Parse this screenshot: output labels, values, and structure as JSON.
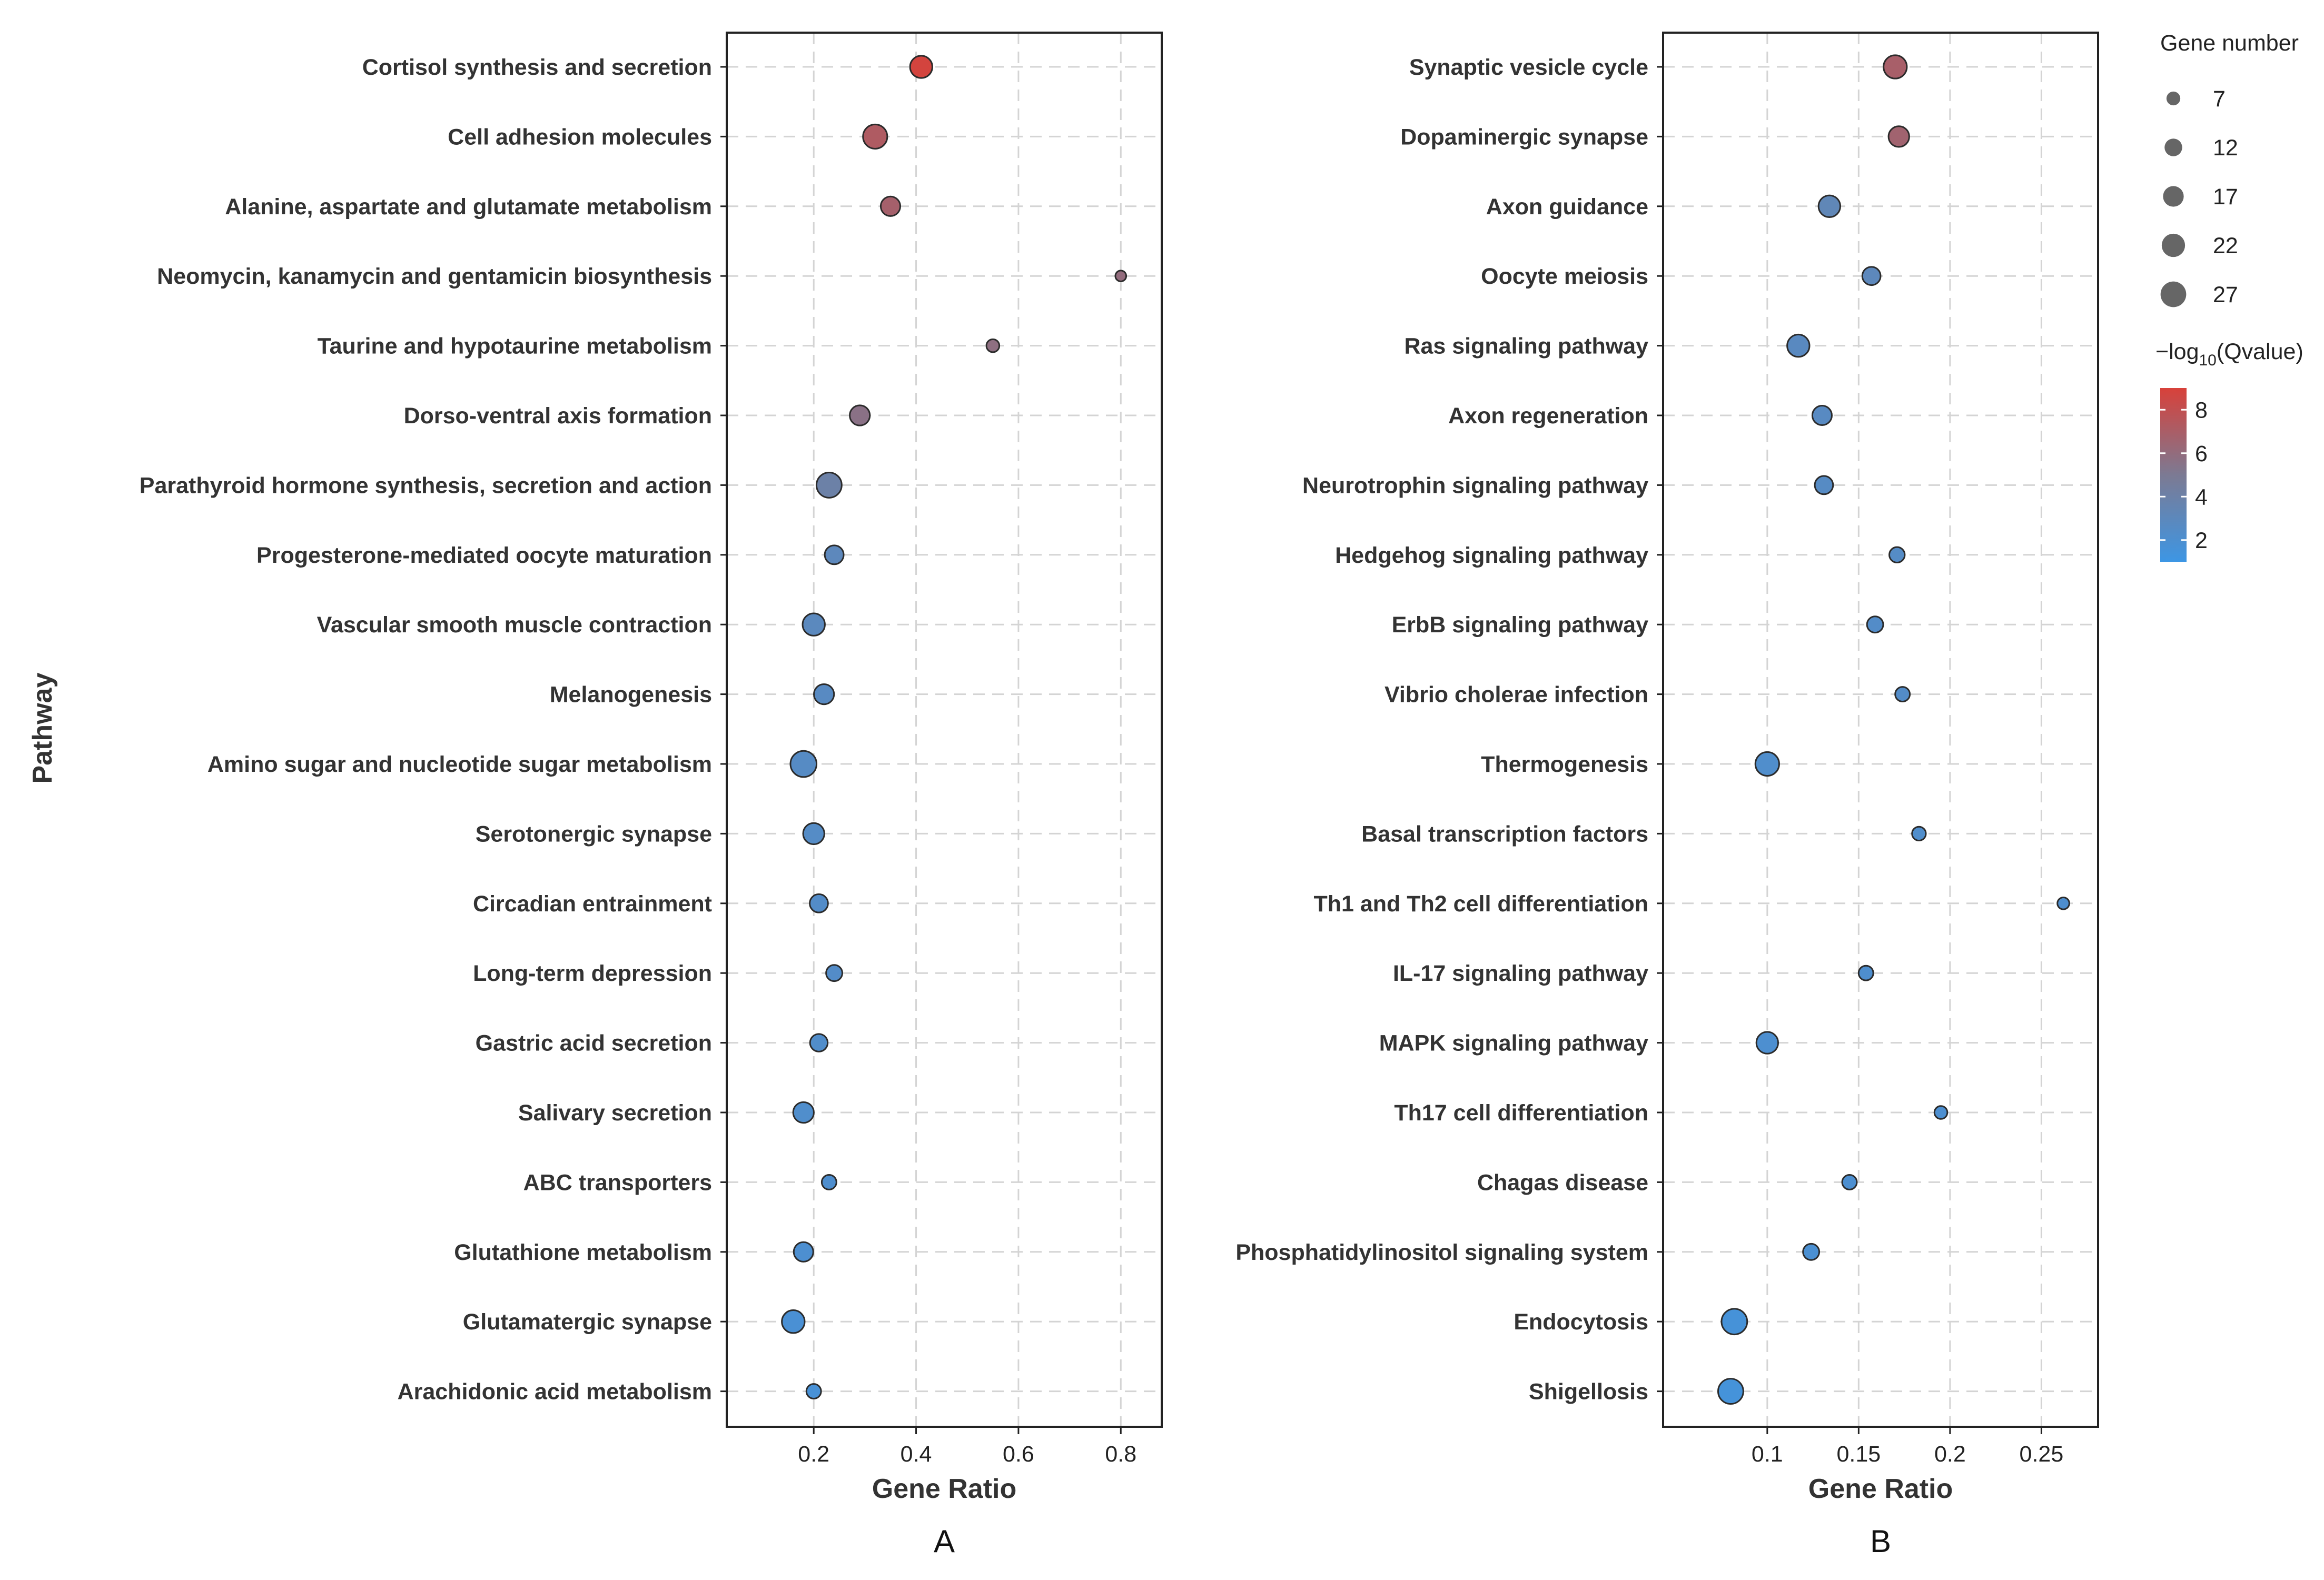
{
  "figure": {
    "y_axis_title": "Pathway",
    "legend": {
      "size_title": "Gene number",
      "size_values": [
        7,
        12,
        17,
        22,
        27
      ],
      "color_title_prefix": "−log",
      "color_title_sub": "10",
      "color_title_suffix": "(Qvalue)",
      "color_ticks": [
        8,
        6,
        4,
        2
      ],
      "color_range": [
        1,
        9
      ],
      "color_high": "#d8413a",
      "color_mid": "#7c7a93",
      "color_low": "#3d96e4"
    }
  },
  "chart_data": [
    {
      "type": "scatter",
      "panel_label": "A",
      "xlabel": "Gene Ratio",
      "ylabel": "Pathway",
      "xlim": [
        0.03,
        0.88
      ],
      "xticks": [
        0.2,
        0.4,
        0.6,
        0.8
      ],
      "xtick_labels": [
        "0.2",
        "0.4",
        "0.6",
        "0.8"
      ],
      "categories": [
        "Cortisol synthesis and secretion",
        "Cell adhesion molecules",
        "Alanine, aspartate and glutamate metabolism",
        "Neomycin, kanamycin and gentamicin biosynthesis",
        "Taurine and hypotaurine metabolism",
        "Dorso-ventral axis formation",
        "Parathyroid hormone synthesis, secretion and action",
        "Progesterone-mediated oocyte maturation",
        "Vascular smooth muscle contraction",
        "Melanogenesis",
        "Amino sugar and nucleotide sugar metabolism",
        "Serotonergic synapse",
        "Circadian entrainment",
        "Long-term depression",
        "Gastric acid secretion",
        "Salivary secretion",
        "ABC transporters",
        "Glutathione metabolism",
        "Glutamatergic synapse",
        "Arachidonic acid metabolism"
      ],
      "gene_ratio": [
        0.41,
        0.32,
        0.35,
        0.8,
        0.55,
        0.29,
        0.23,
        0.24,
        0.2,
        0.22,
        0.18,
        0.2,
        0.21,
        0.24,
        0.21,
        0.18,
        0.23,
        0.18,
        0.16,
        0.2
      ],
      "gene_number": [
        20,
        24,
        15,
        4,
        6,
        16,
        26,
        14,
        20,
        16,
        28,
        18,
        13,
        10,
        12,
        17,
        8,
        15,
        21,
        8
      ],
      "neg_log10_qvalue": [
        8.8,
        7.2,
        6.8,
        6.0,
        5.8,
        5.6,
        4.0,
        3.0,
        2.9,
        2.7,
        2.6,
        2.5,
        2.4,
        2.4,
        2.3,
        2.2,
        2.1,
        2.0,
        1.8,
        1.7
      ]
    },
    {
      "type": "scatter",
      "panel_label": "B",
      "xlabel": "Gene Ratio",
      "ylabel": "Pathway",
      "xlimB": null,
      "xlim": [
        0.043,
        0.281
      ],
      "xticks": [
        0.1,
        0.15,
        0.2,
        0.25
      ],
      "xtick_labels": [
        "0.1",
        "0.15",
        "0.2",
        "0.25"
      ],
      "categories": [
        "Synaptic vesicle cycle",
        "Dopaminergic synapse",
        "Axon guidance",
        "Oocyte meiosis",
        "Ras signaling pathway",
        "Axon regeneration",
        "Neurotrophin signaling pathway",
        "Hedgehog signaling pathway",
        "ErbB signaling pathway",
        "Vibrio cholerae infection",
        "Thermogenesis",
        "Basal transcription factors",
        "Th1 and Th2 cell differentiation",
        "IL-17 signaling pathway",
        "MAPK signaling pathway",
        "Th17 cell differentiation",
        "Chagas disease",
        "Phosphatidylinositol signaling system",
        "Endocytosis",
        "Shigellosis"
      ],
      "gene_ratio": [
        0.17,
        0.172,
        0.134,
        0.157,
        0.117,
        0.13,
        0.131,
        0.171,
        0.159,
        0.174,
        0.1,
        0.183,
        0.262,
        0.154,
        0.1,
        0.195,
        0.145,
        0.124,
        0.082,
        0.08
      ],
      "gene_number": [
        22,
        17,
        19,
        13,
        20,
        15,
        13,
        9,
        10,
        8,
        23,
        7,
        5,
        8,
        19,
        6,
        8,
        10,
        27,
        26
      ],
      "neg_log10_qvalue": [
        6.9,
        6.6,
        3.2,
        3.0,
        2.8,
        2.7,
        2.6,
        2.5,
        2.4,
        2.4,
        2.2,
        2.2,
        2.1,
        2.1,
        2.0,
        2.0,
        2.0,
        1.9,
        1.6,
        1.5
      ]
    }
  ]
}
